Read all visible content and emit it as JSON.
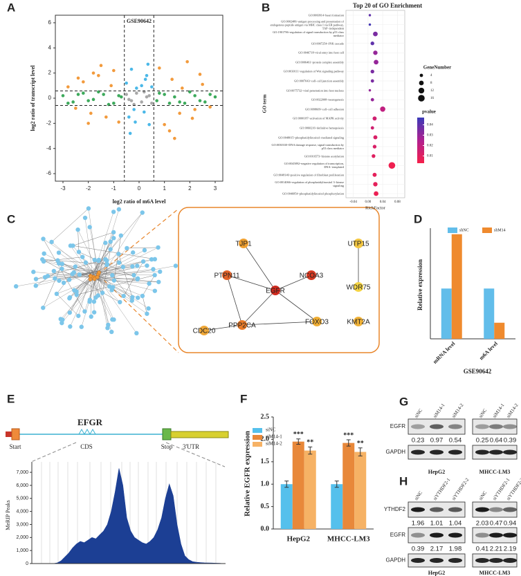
{
  "panel_labels": [
    "A",
    "B",
    "C",
    "D",
    "E",
    "F",
    "G",
    "H"
  ],
  "chart_data": [
    {
      "type": "scatter",
      "title": "GSE90642",
      "x_label": "log2 ratio of m6A level",
      "y_label": "log2 ratio of transcript level",
      "xlim": [
        -3.3,
        3.3
      ],
      "ylim": [
        -6.6,
        6.6
      ],
      "xticks": [
        -3,
        -2,
        -1,
        0,
        1,
        2,
        3
      ],
      "yticks": [
        -6,
        -4,
        -2,
        0,
        2,
        4,
        6
      ],
      "ref_lines_x": [
        -0.58,
        0.58
      ],
      "ref_lines_y": [
        -0.58,
        0.58
      ],
      "series": [
        {
          "color": "#3daa5c",
          "x": [
            -3.0,
            -2.8,
            -2.6,
            -2.4,
            -2.2,
            -2.0,
            -1.8,
            -1.6,
            -1.4,
            -1.2,
            -1.0,
            -0.8,
            -0.7,
            0.7,
            0.8,
            1.0,
            1.2,
            1.4,
            1.6,
            1.8,
            2.0,
            2.2,
            2.4,
            2.6,
            2.8,
            3.0
          ],
          "y": [
            0.2,
            -0.4,
            -0.3,
            0.3,
            0.4,
            -0.2,
            -0.1,
            0.5,
            0.3,
            -0.5,
            -0.4,
            0.2,
            0.1,
            -0.2,
            0.4,
            0.3,
            -0.4,
            0.1,
            -0.3,
            -0.4,
            0.5,
            0.2,
            -0.2,
            -0.3,
            0.3,
            0.1
          ]
        },
        {
          "color": "#f29a3c",
          "x": [
            -2.8,
            -2.5,
            -2.2,
            -1.9,
            -1.6,
            -1.3,
            -1.0,
            -0.8,
            -2.0,
            -1.5,
            -1.1,
            0.8,
            1.0,
            1.3,
            1.6,
            1.9,
            2.2,
            2.5,
            2.8,
            1.2,
            1.7,
            2.1,
            -1.8,
            1.4,
            -2.4,
            2.4
          ],
          "y": [
            0.9,
            -0.8,
            1.3,
            -1.2,
            1.8,
            -1.5,
            2.2,
            -1.9,
            -2.0,
            2.6,
            1.0,
            2.4,
            -2.1,
            1.5,
            -1.2,
            2.9,
            -0.9,
            1.1,
            -0.7,
            -2.6,
            0.8,
            -1.6,
            2.0,
            -3.2,
            1.6,
            1.9
          ]
        },
        {
          "color": "#4bb8e8",
          "x": [
            -0.5,
            -0.4,
            -0.3,
            -0.2,
            -0.1,
            0.1,
            0.2,
            0.3,
            0.4,
            0.5,
            -0.35,
            0.35,
            -0.15,
            0.25
          ],
          "y": [
            1.2,
            -1.5,
            2.3,
            -0.9,
            0.8,
            1.0,
            -1.1,
            1.8,
            -2.1,
            0.9,
            -2.8,
            2.7,
            -1.9,
            1.5
          ]
        },
        {
          "color": "#a8a8a8",
          "x": [
            -0.5,
            -0.3,
            -0.1,
            0.1,
            0.3,
            0.5,
            -0.4,
            0.4,
            -0.2,
            0.2
          ],
          "y": [
            0.3,
            -0.2,
            0.4,
            -0.3,
            0.1,
            -0.4,
            -0.1,
            0.2,
            -0.5,
            0.5
          ]
        }
      ]
    },
    {
      "type": "bubble",
      "title": "Top 20 of GO Enrichment",
      "x_label": "RichFactor",
      "y_label": "GO term",
      "categories": [
        "GO:0060914~heart formation",
        "GO:0002486~antigen processing and presentation of endogenous peptide antigen via MHC class I via ER pathway, TAP−independent",
        "GO:1901796~regulation of signal transduction by p53 class mediator",
        "GO:0007254~JNK cascade",
        "GO:0046718~viral entry into host cell",
        "GO:0006461~protein complex assembly",
        "GO:0030111~regulation of Wnt signaling pathway",
        "GO:0007043~cell−cell junction assembly",
        "GO:0075732~viral penetration into host nucleus",
        "GO:0022008~neurogenesis",
        "GO:0098609~cell−cell adhesion",
        "GO:0000187~activation of MAPK activity",
        "GO:0060216~definitive hemopoiesis",
        "GO:0048015~phosphatidylinositol−mediated signaling",
        "GO:0030330~DNA damage response, signal transduction by p53 class mediator",
        "GO:0016573~histone acetylation",
        "GO:0045892~negative regulation of transcription, DNA−templated",
        "GO:0048146~positive regulation of fibroblast proliferation",
        "GO:0014066~regulation of phosphatidylinositol 3−kinase signaling",
        "GO:0046854~phosphatidylinositol phosphorylation"
      ],
      "values": [
        0.005,
        0.005,
        0.02,
        0.012,
        0.02,
        0.022,
        0.012,
        0.012,
        0.005,
        0.012,
        0.04,
        0.018,
        0.012,
        0.02,
        0.018,
        0.015,
        0.065,
        0.018,
        0.02,
        0.022
      ],
      "sizes": [
        2,
        2,
        8,
        5,
        7,
        8,
        5,
        4,
        2,
        4,
        10,
        6,
        4,
        6,
        5,
        5,
        16,
        6,
        7,
        8
      ],
      "pvalues": [
        0.04,
        0.045,
        0.035,
        0.04,
        0.03,
        0.03,
        0.035,
        0.035,
        0.03,
        0.03,
        0.02,
        0.015,
        0.015,
        0.012,
        0.012,
        0.01,
        0.005,
        0.008,
        0.008,
        0.006
      ],
      "xlim": [
        -0.06,
        0.1
      ],
      "xticks": [
        -0.04,
        {
          "value": 0,
          "label": "0.00"
        },
        0.04,
        0.08
      ],
      "size_legend_title": "GeneNumber",
      "size_legend": [
        4,
        8,
        12,
        16
      ],
      "color_legend_title": "pvalue",
      "color_ticks": [
        0.04,
        0.03,
        0.02,
        0.01
      ],
      "color_range": [
        0.003,
        0.047
      ],
      "colormap": [
        "#f5204a",
        "#b02090",
        "#3a3ab8"
      ],
      "grid": true
    },
    {
      "type": "bar",
      "x_label": "GSE90642",
      "y_label": "Relative expression",
      "categories": [
        "mRNA level",
        "m6A level"
      ],
      "series": [
        {
          "name": "shNC",
          "color": "#62bdea",
          "values": [
            1,
            1
          ]
        },
        {
          "name": "shM14",
          "color": "#ef8a2e",
          "values": [
            2.08,
            0.32
          ]
        }
      ],
      "ylim": [
        0,
        2.2
      ]
    },
    {
      "type": "area",
      "y_label": "MeRIP Peaks",
      "color": "#1c3f94",
      "values": [
        0,
        0,
        0,
        0,
        0,
        0,
        50,
        200,
        500,
        800,
        1200,
        1500,
        1700,
        1600,
        1800,
        2000,
        1900,
        2200,
        2500,
        3000,
        4000,
        5500,
        7300,
        6000,
        3500,
        2500,
        2000,
        1800,
        1600,
        1500,
        1700,
        2000,
        2600,
        3500,
        5000,
        6100,
        5200,
        3000,
        1500,
        600,
        300,
        150,
        100,
        80,
        60,
        50,
        40,
        30,
        20,
        0
      ],
      "ylim": [
        0,
        7800
      ],
      "yticks": [
        0,
        {
          "value": 1000,
          "label": "1,000"
        },
        {
          "value": 2000,
          "label": "2,000"
        },
        {
          "value": 3000,
          "label": "3,000"
        },
        {
          "value": 4000,
          "label": "4,000"
        },
        {
          "value": 5000,
          "label": "5,000"
        },
        {
          "value": 6000,
          "label": "6,000"
        },
        {
          "value": 7000,
          "label": "7,000"
        }
      ]
    },
    {
      "type": "bar",
      "y_label": "Relative EGFR expression",
      "categories": [
        "HepG2",
        "MHCC-LM3"
      ],
      "series": [
        {
          "name": "siNC",
          "color": "#55c0ec",
          "values": [
            1.0,
            1.0
          ],
          "errors": [
            0.07,
            0.07
          ]
        },
        {
          "name": "siM14-1",
          "color": "#e8883a",
          "values": [
            1.95,
            1.92
          ],
          "errors": [
            0.06,
            0.07
          ],
          "annotations": [
            "***",
            "***"
          ]
        },
        {
          "name": "siM14-2",
          "color": "#f6b265",
          "values": [
            1.75,
            1.72
          ],
          "errors": [
            0.08,
            0.09
          ],
          "annotations": [
            "**",
            "**"
          ]
        }
      ],
      "ylim": [
        0,
        2.5
      ],
      "yticks": [
        {
          "value": 0,
          "label": "0.0"
        },
        {
          "value": 0.5,
          "label": "0.5"
        },
        {
          "value": 1,
          "label": "1.0"
        },
        {
          "value": 1.5,
          "label": "1.5"
        },
        {
          "value": 2,
          "label": "2.0"
        },
        {
          "value": 2.5,
          "label": "2.5"
        }
      ]
    }
  ],
  "gene_diagram": {
    "title": "EFGR",
    "labels": [
      "Start",
      "CDS",
      "Stop",
      "3'UTR"
    ]
  },
  "network": {
    "nodes": [
      {
        "label": "TJP1",
        "color": "#f0a030"
      },
      {
        "label": "UTP15",
        "color": "#f3c640"
      },
      {
        "label": "PTPN11",
        "color": "#e2632a"
      },
      {
        "label": "NCOA3",
        "color": "#d43a22"
      },
      {
        "label": "EGFR",
        "color": "#d02a1e"
      },
      {
        "label": "WDR75",
        "color": "#f5d444"
      },
      {
        "label": "CDC20",
        "color": "#f0a838"
      },
      {
        "label": "PPP2CA",
        "color": "#e87a28"
      },
      {
        "label": "FOXO3",
        "color": "#f0ae34"
      },
      {
        "label": "KMT2A",
        "color": "#f0b238"
      }
    ]
  },
  "western_blots": [
    {
      "lanes": [
        "siNC",
        "siM14-1",
        "siM14-2"
      ],
      "cell_lines": [
        "HepG2",
        "MHCC-LM3"
      ],
      "rows": [
        {
          "label": "EGFR",
          "quant": [
            [
              0.23,
              0.97,
              0.54
            ],
            [
              0.25,
              0.64,
              0.39
            ]
          ]
        },
        {
          "label": "GAPDH"
        }
      ]
    },
    {
      "lanes": [
        "siNC",
        "siYTHDF2-1",
        "siYTHDF2-2"
      ],
      "cell_lines": [
        "HepG2",
        "MHCC-LM3"
      ],
      "rows": [
        {
          "label": "YTHDF2",
          "quant": [
            [
              1.96,
              1.01,
              1.04
            ],
            [
              2.03,
              0.47,
              0.94
            ]
          ]
        },
        {
          "label": "EGFR",
          "quant": [
            [
              0.39,
              2.17,
              1.98
            ],
            [
              0.41,
              2.21,
              2.19
            ]
          ]
        },
        {
          "label": "GAPDH"
        }
      ]
    }
  ]
}
